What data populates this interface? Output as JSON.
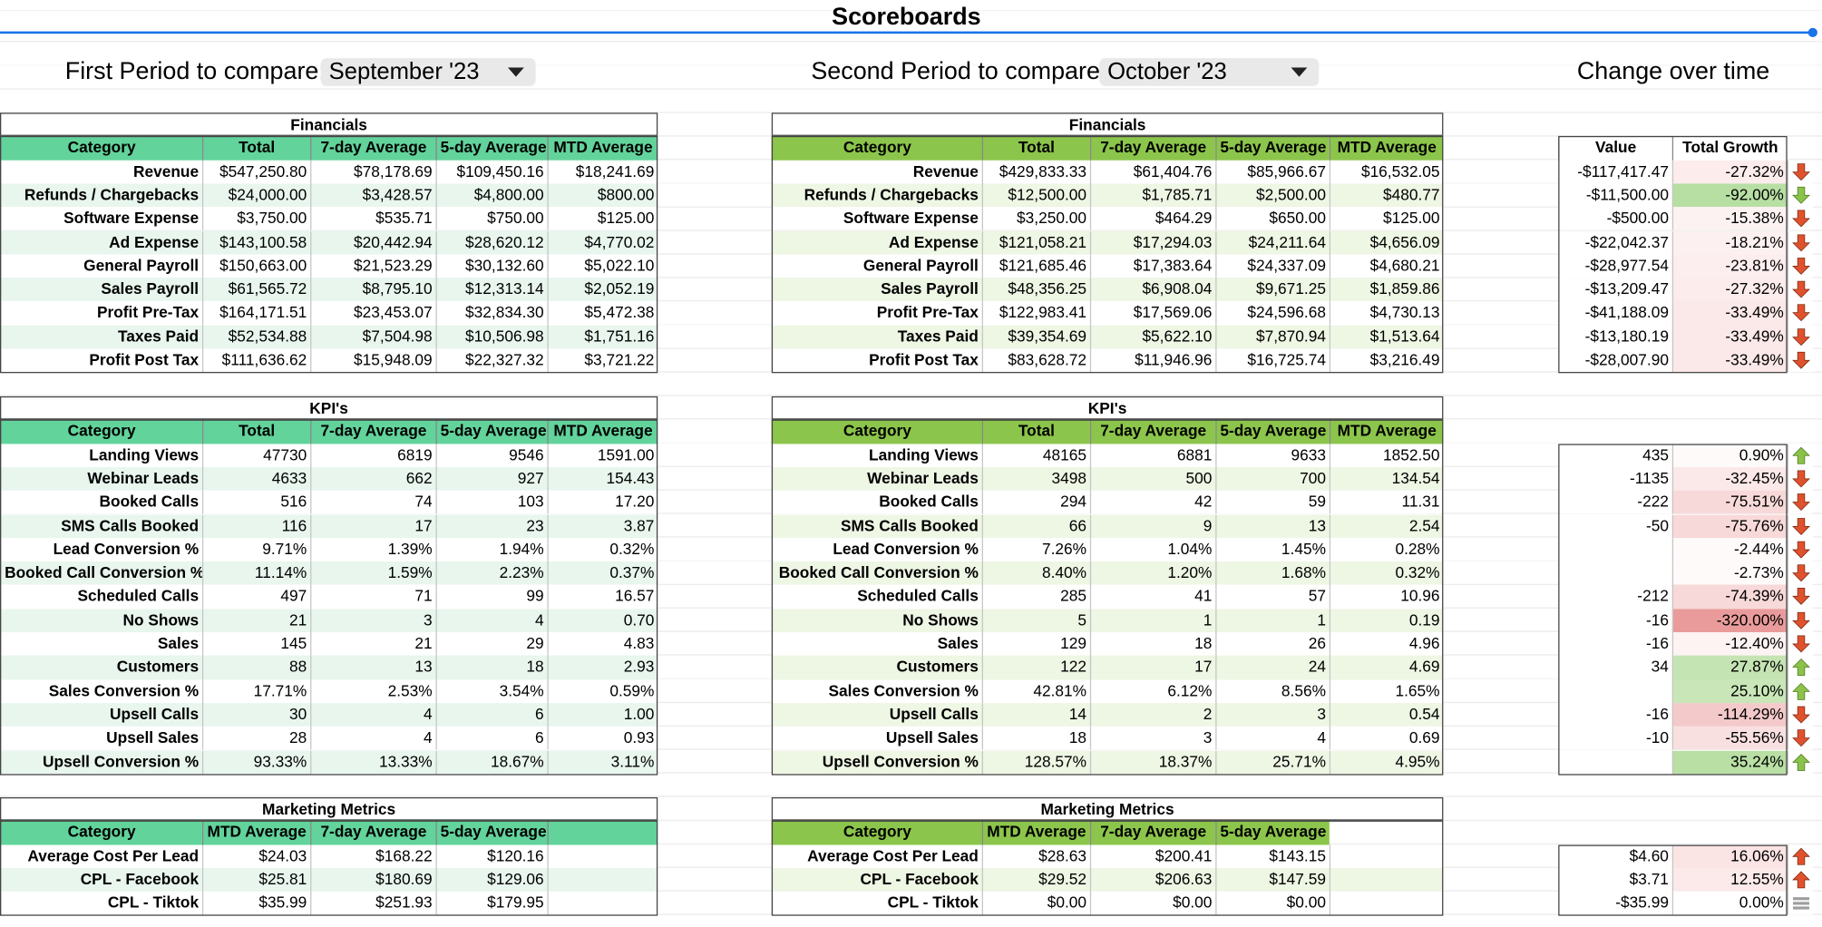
{
  "header": {
    "title": "Scoreboards"
  },
  "periods": {
    "first": {
      "label": "First Period to compare:",
      "value": "September '23"
    },
    "second": {
      "label": "Second Period to compare:",
      "value": "October '23"
    },
    "change_title": "Change over time"
  },
  "sections": [
    {
      "title": "Financials",
      "left": {
        "header": [
          "Category",
          "Total",
          "7-day Average",
          "5-day Average",
          "MTD Average"
        ],
        "rows": [
          [
            "Revenue",
            "$547,250.80",
            "$78,178.69",
            "$109,450.16",
            "$18,241.69"
          ],
          [
            "Refunds / Chargebacks",
            "$24,000.00",
            "$3,428.57",
            "$4,800.00",
            "$800.00"
          ],
          [
            "Software Expense",
            "$3,750.00",
            "$535.71",
            "$750.00",
            "$125.00"
          ],
          [
            "Ad Expense",
            "$143,100.58",
            "$20,442.94",
            "$28,620.12",
            "$4,770.02"
          ],
          [
            "General Payroll",
            "$150,663.00",
            "$21,523.29",
            "$30,132.60",
            "$5,022.10"
          ],
          [
            "Sales Payroll",
            "$61,565.72",
            "$8,795.10",
            "$12,313.14",
            "$2,052.19"
          ],
          [
            "Profit Pre-Tax",
            "$164,171.51",
            "$23,453.07",
            "$32,834.30",
            "$5,472.38"
          ],
          [
            "Taxes Paid",
            "$52,534.88",
            "$7,504.98",
            "$10,506.98",
            "$1,751.16"
          ],
          [
            "Profit Post Tax",
            "$111,636.62",
            "$15,948.09",
            "$22,327.32",
            "$3,721.22"
          ]
        ]
      },
      "right": {
        "header": [
          "Category",
          "Total",
          "7-day Average",
          "5-day Average",
          "MTD Average"
        ],
        "rows": [
          [
            "Revenue",
            "$429,833.33",
            "$61,404.76",
            "$85,966.67",
            "$16,532.05"
          ],
          [
            "Refunds / Chargebacks",
            "$12,500.00",
            "$1,785.71",
            "$2,500.00",
            "$480.77"
          ],
          [
            "Software Expense",
            "$3,250.00",
            "$464.29",
            "$650.00",
            "$125.00"
          ],
          [
            "Ad Expense",
            "$121,058.21",
            "$17,294.03",
            "$24,211.64",
            "$4,656.09"
          ],
          [
            "General Payroll",
            "$121,685.46",
            "$17,383.64",
            "$24,337.09",
            "$4,680.21"
          ],
          [
            "Sales Payroll",
            "$48,356.25",
            "$6,908.04",
            "$9,671.25",
            "$1,859.86"
          ],
          [
            "Profit Pre-Tax",
            "$122,983.41",
            "$17,569.06",
            "$24,596.68",
            "$4,730.13"
          ],
          [
            "Taxes Paid",
            "$39,354.69",
            "$5,622.10",
            "$7,870.94",
            "$1,513.64"
          ],
          [
            "Profit Post Tax",
            "$83,628.72",
            "$11,946.96",
            "$16,725.74",
            "$3,216.49"
          ]
        ]
      },
      "change": {
        "header": [
          "Value",
          "Total Growth"
        ],
        "rows": [
          {
            "value": "-$117,417.47",
            "growth": "-27.32%",
            "arrow": "down",
            "arrow_color": "#e0522e",
            "growth_color": "#fcecec"
          },
          {
            "value": "-$11,500.00",
            "growth": "-92.00%",
            "arrow": "down",
            "arrow_color": "#8bc34a",
            "growth_color": "#b7dfa3"
          },
          {
            "value": "-$500.00",
            "growth": "-15.38%",
            "arrow": "down",
            "arrow_color": "#e0522e",
            "growth_color": "#fdf2f2"
          },
          {
            "value": "-$22,042.37",
            "growth": "-18.21%",
            "arrow": "down",
            "arrow_color": "#e0522e",
            "growth_color": "#fdf0f0"
          },
          {
            "value": "-$28,977.54",
            "growth": "-23.81%",
            "arrow": "down",
            "arrow_color": "#e0522e",
            "growth_color": "#fcedee"
          },
          {
            "value": "-$13,209.47",
            "growth": "-27.32%",
            "arrow": "down",
            "arrow_color": "#e0522e",
            "growth_color": "#fcecec"
          },
          {
            "value": "-$41,188.09",
            "growth": "-33.49%",
            "arrow": "down",
            "arrow_color": "#e0522e",
            "growth_color": "#fbe8e8"
          },
          {
            "value": "-$13,180.19",
            "growth": "-33.49%",
            "arrow": "down",
            "arrow_color": "#e0522e",
            "growth_color": "#fbe8e8"
          },
          {
            "value": "-$28,007.90",
            "growth": "-33.49%",
            "arrow": "down",
            "arrow_color": "#e0522e",
            "growth_color": "#fbe8e8"
          }
        ]
      }
    },
    {
      "title": "KPI's",
      "left": {
        "header": [
          "Category",
          "Total",
          "7-day Average",
          "5-day Average",
          "MTD Average"
        ],
        "rows": [
          [
            "Landing Views",
            "47730",
            "6819",
            "9546",
            "1591.00"
          ],
          [
            "Webinar Leads",
            "4633",
            "662",
            "927",
            "154.43"
          ],
          [
            "Booked Calls",
            "516",
            "74",
            "103",
            "17.20"
          ],
          [
            "SMS Calls Booked",
            "116",
            "17",
            "23",
            "3.87"
          ],
          [
            "Lead Conversion %",
            "9.71%",
            "1.39%",
            "1.94%",
            "0.32%"
          ],
          [
            "Booked Call Conversion %",
            "11.14%",
            "1.59%",
            "2.23%",
            "0.37%"
          ],
          [
            "Scheduled Calls",
            "497",
            "71",
            "99",
            "16.57"
          ],
          [
            "No Shows",
            "21",
            "3",
            "4",
            "0.70"
          ],
          [
            "Sales",
            "145",
            "21",
            "29",
            "4.83"
          ],
          [
            "Customers",
            "88",
            "13",
            "18",
            "2.93"
          ],
          [
            "Sales Conversion %",
            "17.71%",
            "2.53%",
            "3.54%",
            "0.59%"
          ],
          [
            "Upsell Calls",
            "30",
            "4",
            "6",
            "1.00"
          ],
          [
            "Upsell Sales",
            "28",
            "4",
            "6",
            "0.93"
          ],
          [
            "Upsell Conversion %",
            "93.33%",
            "13.33%",
            "18.67%",
            "3.11%"
          ]
        ]
      },
      "right": {
        "header": [
          "Category",
          "Total",
          "7-day Average",
          "5-day Average",
          "MTD Average"
        ],
        "rows": [
          [
            "Landing Views",
            "48165",
            "6881",
            "9633",
            "1852.50"
          ],
          [
            "Webinar Leads",
            "3498",
            "500",
            "700",
            "134.54"
          ],
          [
            "Booked Calls",
            "294",
            "42",
            "59",
            "11.31"
          ],
          [
            "SMS Calls Booked",
            "66",
            "9",
            "13",
            "2.54"
          ],
          [
            "Lead Conversion %",
            "7.26%",
            "1.04%",
            "1.45%",
            "0.28%"
          ],
          [
            "Booked Call Conversion %",
            "8.40%",
            "1.20%",
            "1.68%",
            "0.32%"
          ],
          [
            "Scheduled Calls",
            "285",
            "41",
            "57",
            "10.96"
          ],
          [
            "No Shows",
            "5",
            "1",
            "1",
            "0.19"
          ],
          [
            "Sales",
            "129",
            "18",
            "26",
            "4.96"
          ],
          [
            "Customers",
            "122",
            "17",
            "24",
            "4.69"
          ],
          [
            "Sales Conversion %",
            "42.81%",
            "6.12%",
            "8.56%",
            "1.65%"
          ],
          [
            "Upsell Calls",
            "14",
            "2",
            "3",
            "0.54"
          ],
          [
            "Upsell Sales",
            "18",
            "3",
            "4",
            "0.69"
          ],
          [
            "Upsell Conversion %",
            "128.57%",
            "18.37%",
            "25.71%",
            "4.95%"
          ]
        ]
      },
      "change": {
        "rows": [
          {
            "value": "435",
            "growth": "0.90%",
            "arrow": "up",
            "arrow_color": "#8bc34a",
            "growth_color": "#fefafa"
          },
          {
            "value": "-1135",
            "growth": "-32.45%",
            "arrow": "down",
            "arrow_color": "#e0522e",
            "growth_color": "#fbe8e8"
          },
          {
            "value": "-222",
            "growth": "-75.51%",
            "arrow": "down",
            "arrow_color": "#e0522e",
            "growth_color": "#f8d9d9"
          },
          {
            "value": "-50",
            "growth": "-75.76%",
            "arrow": "down",
            "arrow_color": "#e0522e",
            "growth_color": "#f8d9d9"
          },
          {
            "value": null,
            "growth": "-2.44%",
            "arrow": "down",
            "arrow_color": "#e0522e",
            "growth_color": "#fefafa"
          },
          {
            "value": null,
            "growth": "-2.73%",
            "arrow": "down",
            "arrow_color": "#e0522e",
            "growth_color": "#fefafa"
          },
          {
            "value": "-212",
            "growth": "-74.39%",
            "arrow": "down",
            "arrow_color": "#e0522e",
            "growth_color": "#f8d9d9"
          },
          {
            "value": "-16",
            "growth": "-320.00%",
            "arrow": "down",
            "arrow_color": "#e0522e",
            "growth_color": "#e99b9b"
          },
          {
            "value": "-16",
            "growth": "-12.40%",
            "arrow": "down",
            "arrow_color": "#e0522e",
            "growth_color": "#fdf3f3"
          },
          {
            "value": "34",
            "growth": "27.87%",
            "arrow": "up",
            "arrow_color": "#8bc34a",
            "growth_color": "#c5e4b3"
          },
          {
            "value": null,
            "growth": "25.10%",
            "arrow": "up",
            "arrow_color": "#8bc34a",
            "growth_color": "#c9e6b8"
          },
          {
            "value": "-16",
            "growth": "-114.29%",
            "arrow": "down",
            "arrow_color": "#e0522e",
            "growth_color": "#f4c9c9"
          },
          {
            "value": "-10",
            "growth": "-55.56%",
            "arrow": "down",
            "arrow_color": "#e0522e",
            "growth_color": "#f9e0e0"
          },
          {
            "value": null,
            "growth": "35.24%",
            "arrow": "up",
            "arrow_color": "#8bc34a",
            "growth_color": "#b9dfa5"
          }
        ]
      }
    },
    {
      "title": "Marketing Metrics",
      "left": {
        "header": [
          "Category",
          "MTD Average",
          "7-day Average",
          "5-day Average"
        ],
        "rows": [
          [
            "Average Cost Per Lead",
            "$24.03",
            "$168.22",
            "$120.16"
          ],
          [
            "CPL - Facebook",
            "$25.81",
            "$180.69",
            "$129.06"
          ],
          [
            "CPL - Tiktok",
            "$35.99",
            "$251.93",
            "$179.95"
          ]
        ]
      },
      "right": {
        "header": [
          "Category",
          "MTD Average",
          "7-day Average",
          "5-day Average"
        ],
        "rows": [
          [
            "Average Cost Per Lead",
            "$28.63",
            "$200.41",
            "$143.15"
          ],
          [
            "CPL - Facebook",
            "$29.52",
            "$206.63",
            "$147.59"
          ],
          [
            "CPL - Tiktok",
            "$0.00",
            "$0.00",
            "$0.00"
          ]
        ]
      },
      "change": {
        "rows": [
          {
            "value": "$4.60",
            "growth": "16.06%",
            "arrow": "up",
            "arrow_color": "#e0522e",
            "growth_color": "#fbe4e4"
          },
          {
            "value": "$3.71",
            "growth": "12.55%",
            "arrow": "up",
            "arrow_color": "#e0522e",
            "growth_color": "#fce9e9"
          },
          {
            "value": "-$35.99",
            "growth": "0.00%",
            "arrow": "flat",
            "arrow_color": "#9e9e9e",
            "growth_color": "#ffffff"
          }
        ]
      }
    }
  ]
}
